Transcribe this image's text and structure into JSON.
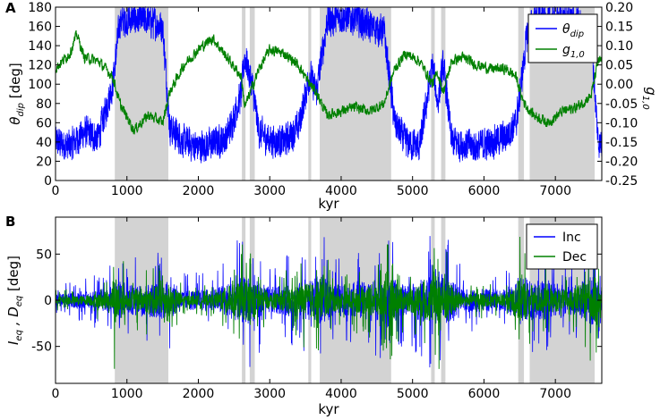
{
  "chart_data": [
    {
      "type": "line",
      "panel": "A",
      "xlabel": "kyr",
      "ylabel": "θ_dip [deg]",
      "ylabel_right": "g_1,0",
      "xlim": [
        0,
        7650
      ],
      "ylim": [
        0,
        180
      ],
      "ylim_right": [
        -0.25,
        0.2
      ],
      "xticks": [
        0,
        1000,
        2000,
        3000,
        4000,
        5000,
        6000,
        7000
      ],
      "yticks": [
        0,
        20,
        40,
        60,
        80,
        100,
        120,
        140,
        160,
        180
      ],
      "yticks_right": [
        "-0.25",
        "-0.20",
        "-0.15",
        "-0.10",
        "-0.05",
        "0.00",
        "0.05",
        "0.10",
        "0.15",
        "0.20"
      ],
      "grid": false,
      "legend_position": "top-right",
      "shaded_intervals": [
        [
          830,
          1580
        ],
        [
          2610,
          2660
        ],
        [
          2720,
          2790
        ],
        [
          3540,
          3580
        ],
        [
          3700,
          4700
        ],
        [
          5260,
          5310
        ],
        [
          5400,
          5460
        ],
        [
          6480,
          6560
        ],
        [
          6640,
          7550
        ]
      ],
      "series": [
        {
          "name": "θ_dip",
          "color": "#0000ff",
          "axis": "left",
          "x": [
            0,
            200,
            400,
            600,
            800,
            900,
            1100,
            1300,
            1500,
            1600,
            1800,
            2000,
            2200,
            2400,
            2600,
            2650,
            2750,
            2850,
            3000,
            3200,
            3400,
            3560,
            3650,
            3800,
            4000,
            4200,
            4400,
            4600,
            4750,
            4900,
            5100,
            5280,
            5350,
            5430,
            5550,
            5700,
            5900,
            6100,
            6300,
            6450,
            6520,
            6600,
            6700,
            6900,
            7100,
            7300,
            7500,
            7600
          ],
          "values": [
            40,
            35,
            50,
            45,
            100,
            165,
            168,
            166,
            160,
            55,
            40,
            35,
            38,
            45,
            90,
            130,
            100,
            50,
            42,
            40,
            55,
            110,
            90,
            165,
            170,
            168,
            160,
            155,
            60,
            40,
            35,
            120,
            80,
            120,
            40,
            38,
            35,
            40,
            45,
            60,
            100,
            150,
            168,
            165,
            168,
            165,
            150,
            40
          ]
        },
        {
          "name": "g_1,0",
          "color": "#008000",
          "axis": "right",
          "x": [
            0,
            200,
            300,
            400,
            600,
            800,
            900,
            1100,
            1300,
            1500,
            1600,
            1800,
            2000,
            2200,
            2400,
            2600,
            2650,
            2750,
            2850,
            3000,
            3200,
            3400,
            3560,
            3650,
            3800,
            4000,
            4200,
            4400,
            4600,
            4750,
            4900,
            5100,
            5280,
            5350,
            5430,
            5550,
            5700,
            5900,
            6100,
            6300,
            6450,
            6520,
            6600,
            6700,
            6900,
            7100,
            7300,
            7500,
            7600
          ],
          "values": [
            0.04,
            0.08,
            0.13,
            0.07,
            0.06,
            0.02,
            -0.05,
            -0.12,
            -0.08,
            -0.1,
            -0.02,
            0.05,
            0.09,
            0.12,
            0.07,
            0.02,
            -0.06,
            -0.01,
            0.04,
            0.09,
            0.08,
            0.05,
            0.0,
            -0.02,
            -0.08,
            -0.07,
            -0.06,
            -0.07,
            -0.05,
            0.04,
            0.08,
            0.06,
            0.0,
            0.03,
            -0.02,
            0.06,
            0.07,
            0.05,
            0.04,
            0.04,
            0.02,
            -0.03,
            -0.06,
            -0.08,
            -0.1,
            -0.07,
            -0.06,
            -0.03,
            0.06
          ]
        }
      ]
    },
    {
      "type": "line",
      "panel": "B",
      "xlabel": "kyr",
      "ylabel": "I_eq , D_eq [deg]",
      "xlim": [
        0,
        7650
      ],
      "ylim": [
        -90,
        90
      ],
      "xticks": [
        0,
        1000,
        2000,
        3000,
        4000,
        5000,
        6000,
        7000
      ],
      "yticks": [
        -50,
        0,
        50
      ],
      "grid": false,
      "legend_position": "top-right",
      "shaded_intervals": [
        [
          830,
          1580
        ],
        [
          2610,
          2660
        ],
        [
          2720,
          2790
        ],
        [
          3540,
          3580
        ],
        [
          3700,
          4700
        ],
        [
          5260,
          5310
        ],
        [
          5400,
          5460
        ],
        [
          6480,
          6560
        ],
        [
          6640,
          7550
        ]
      ],
      "series": [
        {
          "name": "Inc",
          "color": "#0000ff",
          "amplitude_envelope": {
            "x": [
              0,
              400,
              800,
              830,
              1000,
              1580,
              1800,
              2200,
              2600,
              2700,
              3000,
              3540,
              3600,
              3700,
              4000,
              4700,
              4900,
              5300,
              5400,
              5700,
              6300,
              6500,
              6700,
              7200,
              7550,
              7650
            ],
            "values": [
              20,
              25,
              40,
              70,
              45,
              60,
              30,
              35,
              70,
              75,
              40,
              60,
              65,
              75,
              45,
              70,
              45,
              80,
              85,
              35,
              35,
              75,
              60,
              45,
              80,
              40
            ]
          }
        },
        {
          "name": "Dec",
          "color": "#008000",
          "amplitude_envelope": {
            "x": [
              0,
              400,
              800,
              830,
              1000,
              1580,
              1800,
              2200,
              2600,
              2700,
              3000,
              3540,
              3600,
              3700,
              4000,
              4700,
              4900,
              5300,
              5400,
              5700,
              6300,
              6500,
              6700,
              7200,
              7550,
              7650
            ],
            "values": [
              12,
              14,
              30,
              85,
              30,
              50,
              15,
              18,
              60,
              65,
              20,
              55,
              55,
              60,
              25,
              65,
              30,
              75,
              80,
              20,
              20,
              70,
              45,
              30,
              75,
              20
            ]
          }
        }
      ]
    }
  ],
  "panels": {
    "a": {
      "letter": "A",
      "xlabel": "kyr",
      "ylabel_main": "θ",
      "ylabel_sub": "dip",
      "ylabel_tail": " [deg]",
      "ylabel_right_main": "g",
      "ylabel_right_sub": "1,0",
      "legend": [
        {
          "main": "θ",
          "sub": "dip"
        },
        {
          "main": "g",
          "sub": "1,0"
        }
      ]
    },
    "b": {
      "letter": "B",
      "xlabel": "kyr",
      "ylabel_parts": [
        "I",
        "eq",
        " , D",
        "eq",
        " [deg]"
      ],
      "legend": [
        "Inc",
        "Dec"
      ]
    }
  },
  "colors": {
    "shade": "#d3d3d3",
    "blue": "#0000ff",
    "green": "#008000"
  }
}
